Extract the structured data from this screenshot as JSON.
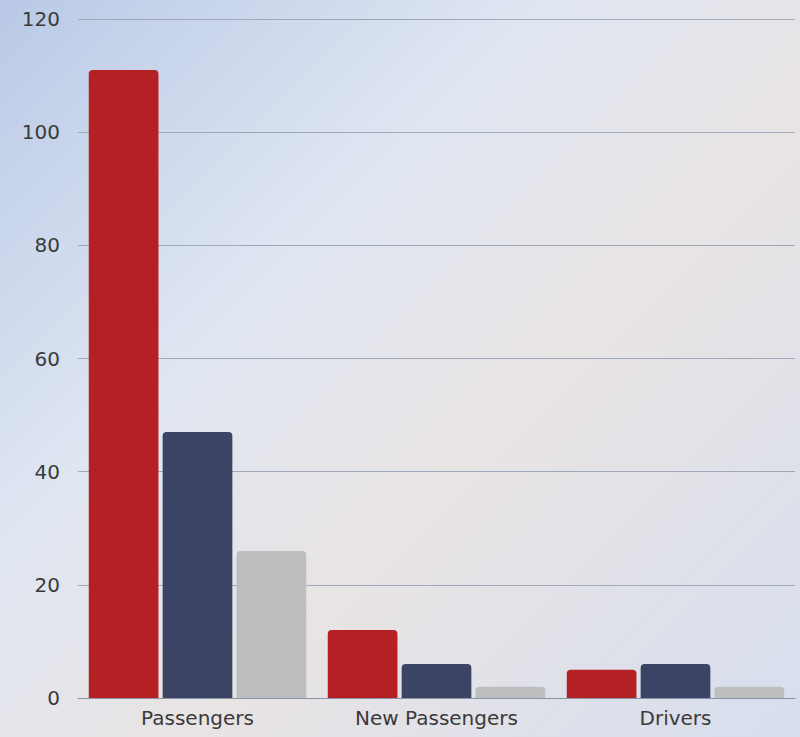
{
  "chart_data": {
    "type": "bar",
    "categories": [
      "Passengers",
      "New Passengers",
      "Drivers"
    ],
    "series": [
      {
        "color": "#b52025",
        "values": [
          111,
          12,
          5
        ]
      },
      {
        "color": "#3c4466",
        "values": [
          47,
          6,
          6
        ]
      },
      {
        "color": "#bdbec0",
        "values": [
          26,
          2,
          2
        ]
      }
    ],
    "ylim": [
      0,
      120
    ],
    "yticks": [
      0,
      20,
      40,
      60,
      80,
      100,
      120
    ],
    "grid": true
  }
}
